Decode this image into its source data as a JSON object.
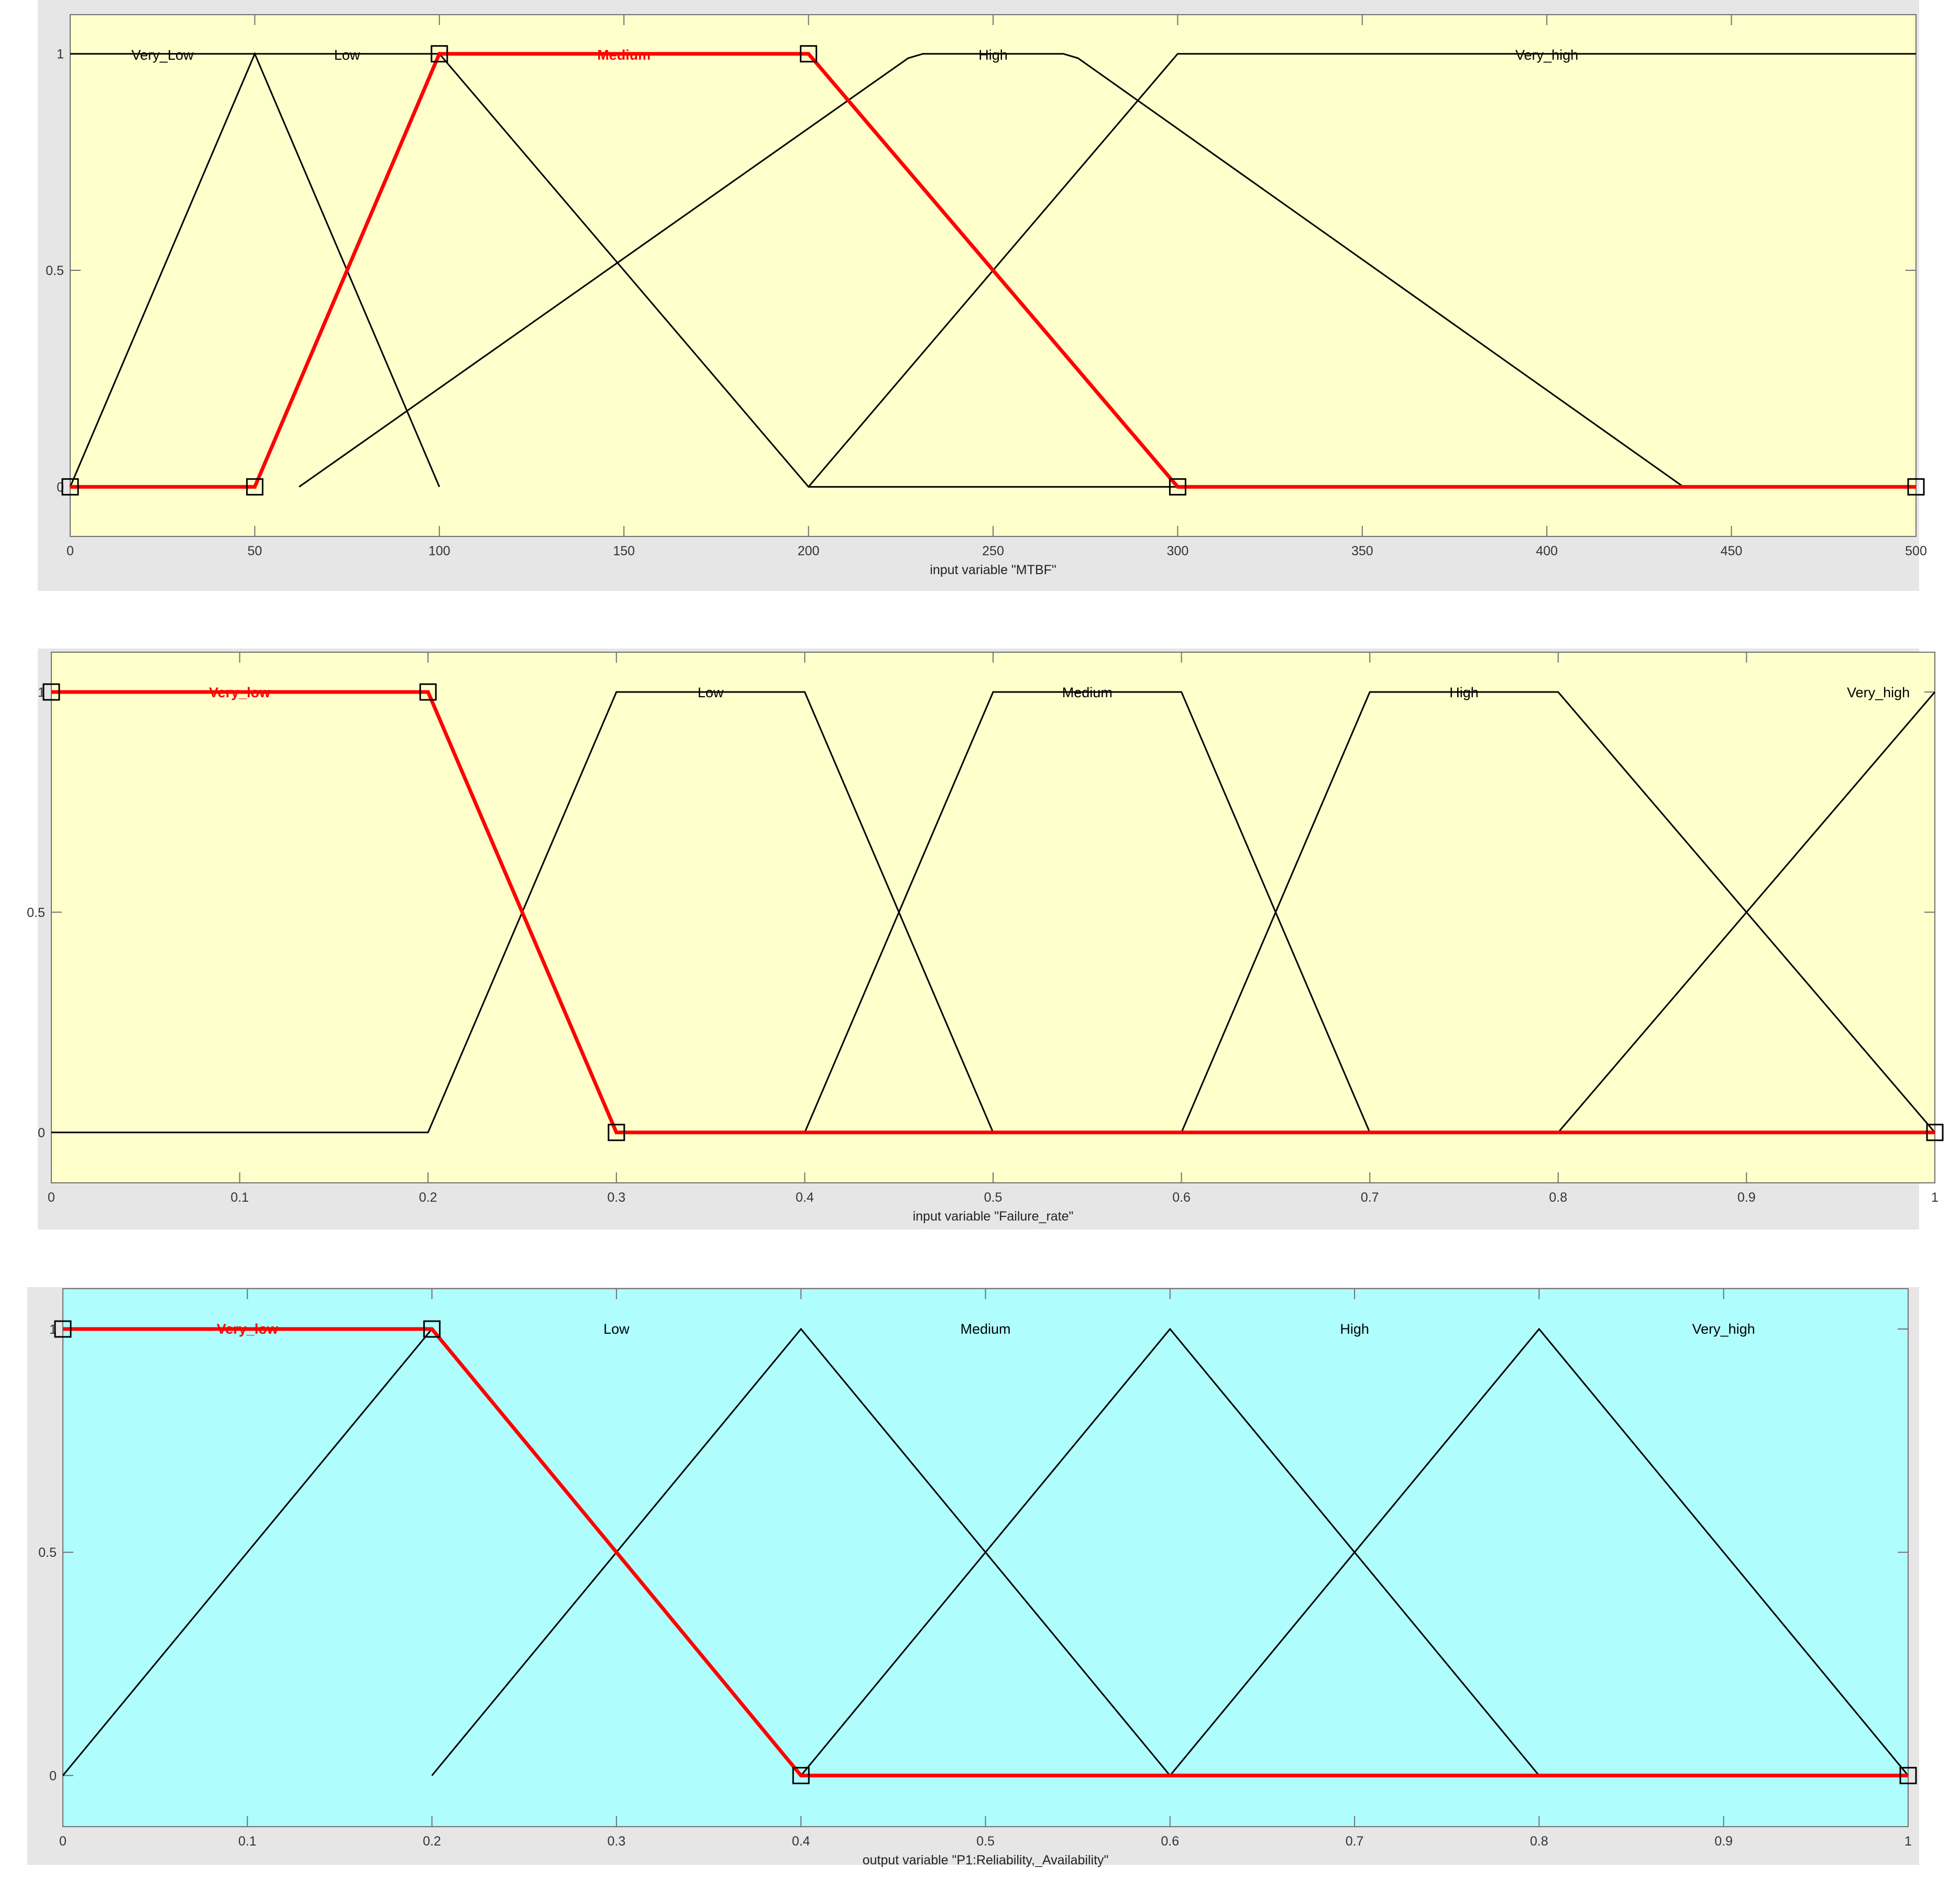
{
  "colors": {
    "panel": "#e6e6e6",
    "plot_input": "#ffffcc",
    "plot_output": "#b0fdfe",
    "line": "#000000",
    "highlight": "#ff0000",
    "tick": "#707070"
  },
  "chart_data": [
    {
      "type": "line",
      "name": "mtbf",
      "xlabel": "input variable \"MTBF\"",
      "xlim": [
        0,
        500
      ],
      "ylim": [
        0,
        1
      ],
      "xticks": [
        0,
        50,
        100,
        150,
        200,
        250,
        300,
        350,
        400,
        450,
        500
      ],
      "yticks": [
        0,
        0.5,
        1
      ],
      "tick_labels_x": [
        "0",
        "50",
        "100",
        "150",
        "200",
        "250",
        "300",
        "350",
        "400",
        "450",
        "500"
      ],
      "tick_labels_y": [
        "0",
        "0.5",
        "1"
      ],
      "plot_color": "#ffffcc",
      "highlight": 2,
      "series": [
        {
          "name": "Very_Low",
          "label_x": 25,
          "points": [
            [
              0,
              0
            ],
            [
              50,
              1
            ],
            [
              100,
              0
            ]
          ]
        },
        {
          "name": "Low",
          "label_x": 75,
          "points": [
            [
              0,
              1
            ],
            [
              100,
              1
            ],
            [
              200,
              0
            ],
            [
              500,
              0
            ]
          ]
        },
        {
          "name": "Medium",
          "label_x": 150,
          "points": [
            [
              0,
              0
            ],
            [
              50,
              0
            ],
            [
              100,
              1
            ],
            [
              200,
              1
            ],
            [
              300,
              0
            ],
            [
              500,
              0
            ]
          ]
        },
        {
          "name": "High",
          "label_x": 250,
          "points": [
            [
              62,
              0
            ],
            [
              227,
              0.99
            ],
            [
              231,
              1
            ],
            [
              269,
              1
            ],
            [
              273,
              0.99
            ],
            [
              437,
              0
            ]
          ]
        },
        {
          "name": "Very_high",
          "label_x": 400,
          "points": [
            [
              200,
              0
            ],
            [
              300,
              1
            ],
            [
              500,
              1
            ]
          ]
        }
      ]
    },
    {
      "type": "line",
      "name": "failure-rate",
      "xlabel": "input variable \"Failure_rate\"",
      "xlim": [
        0,
        1
      ],
      "ylim": [
        0,
        1
      ],
      "xticks": [
        0,
        0.1,
        0.2,
        0.3,
        0.4,
        0.5,
        0.6,
        0.7,
        0.8,
        0.9,
        1
      ],
      "yticks": [
        0,
        0.5,
        1
      ],
      "tick_labels_x": [
        "0",
        "0.1",
        "0.2",
        "0.3",
        "0.4",
        "0.5",
        "0.6",
        "0.7",
        "0.8",
        "0.9",
        "1"
      ],
      "tick_labels_y": [
        "0",
        "0.5",
        "1"
      ],
      "plot_color": "#ffffcc",
      "highlight": 0,
      "series": [
        {
          "name": "Very_low",
          "label_x": 0.1,
          "points": [
            [
              0,
              1
            ],
            [
              0.2,
              1
            ],
            [
              0.3,
              0
            ],
            [
              1,
              0
            ]
          ]
        },
        {
          "name": "Low",
          "label_x": 0.35,
          "points": [
            [
              0,
              0
            ],
            [
              0.2,
              0
            ],
            [
              0.3,
              1
            ],
            [
              0.4,
              1
            ],
            [
              0.5,
              0
            ]
          ]
        },
        {
          "name": "Medium",
          "label_x": 0.55,
          "points": [
            [
              0.4,
              0
            ],
            [
              0.5,
              1
            ],
            [
              0.6,
              1
            ],
            [
              0.7,
              0
            ]
          ]
        },
        {
          "name": "High",
          "label_x": 0.75,
          "points": [
            [
              0.6,
              0
            ],
            [
              0.7,
              1
            ],
            [
              0.8,
              1
            ],
            [
              1,
              0
            ]
          ]
        },
        {
          "name": "Very_high",
          "label_x": 0.97,
          "points": [
            [
              0.8,
              0
            ],
            [
              1,
              1
            ]
          ]
        }
      ]
    },
    {
      "type": "line",
      "name": "reliability-availability",
      "xlabel": "output variable \"P1:Reliability,_Availability\"",
      "xlim": [
        0,
        1
      ],
      "ylim": [
        0,
        1
      ],
      "xticks": [
        0,
        0.1,
        0.2,
        0.3,
        0.4,
        0.5,
        0.6,
        0.7,
        0.8,
        0.9,
        1
      ],
      "yticks": [
        0,
        0.5,
        1
      ],
      "tick_labels_x": [
        "0",
        "0.1",
        "0.2",
        "0.3",
        "0.4",
        "0.5",
        "0.6",
        "0.7",
        "0.8",
        "0.9",
        "1"
      ],
      "tick_labels_y": [
        "0",
        "0.5",
        "1"
      ],
      "plot_color": "#b0fdfe",
      "highlight": 0,
      "series": [
        {
          "name": "Very_low",
          "label_x": 0.1,
          "points": [
            [
              0,
              1
            ],
            [
              0.2,
              1
            ],
            [
              0.4,
              0
            ],
            [
              1,
              0
            ]
          ]
        },
        {
          "name": "Low",
          "label_x": 0.3,
          "points": [
            [
              0,
              0
            ],
            [
              0.2,
              1
            ],
            [
              0.4,
              0
            ]
          ]
        },
        {
          "name": "Medium",
          "label_x": 0.5,
          "points": [
            [
              0.2,
              0
            ],
            [
              0.4,
              1
            ],
            [
              0.6,
              0
            ]
          ]
        },
        {
          "name": "High",
          "label_x": 0.7,
          "points": [
            [
              0.4,
              0
            ],
            [
              0.6,
              1
            ],
            [
              0.8,
              0
            ]
          ]
        },
        {
          "name": "Very_high",
          "label_x": 0.9,
          "points": [
            [
              0.6,
              0
            ],
            [
              0.8,
              1
            ],
            [
              1,
              0
            ]
          ]
        }
      ]
    }
  ]
}
